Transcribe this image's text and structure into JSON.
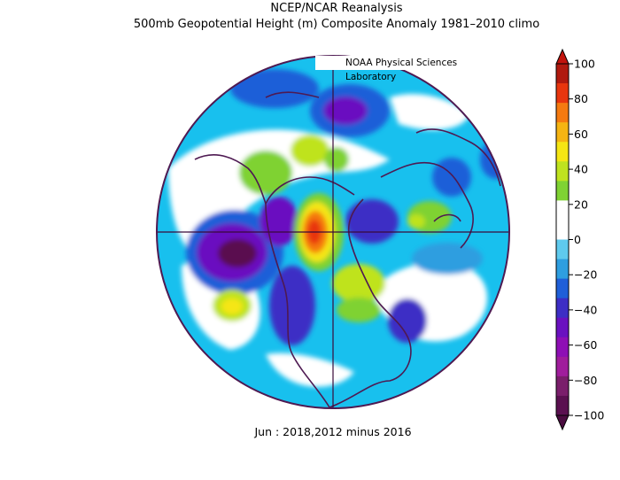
{
  "header": {
    "line1": "NCEP/NCAR Reanalysis",
    "line2": "500mb Geopotential Height (m) Composite Anomaly 1981–2010 climo"
  },
  "credit": "NOAA Physical Sciences Laboratory",
  "footer": "Jun : 2018,2012 minus 2016",
  "colorbar": {
    "ticks": [
      "100",
      "80",
      "60",
      "40",
      "20",
      "0",
      "−20",
      "−40",
      "−60",
      "−80",
      "−100"
    ],
    "colors": [
      "#b01a0f",
      "#e8360e",
      "#f57a10",
      "#f5b412",
      "#f5e614",
      "#bfe31f",
      "#7fd233",
      "#ffffff",
      "#ffffff",
      "#5fcaee",
      "#2e9ee0",
      "#1f5fd8",
      "#3d2ec5",
      "#6a11c0",
      "#8e0fb5",
      "#a01d9c",
      "#7a1e6b",
      "#5a1050"
    ],
    "top_arrow_color": "#c2140d",
    "bottom_arrow_color": "#4a0c40"
  },
  "map": {
    "projection": "polar stereographic, north pole",
    "background_color": "#18c0ee",
    "outline_color": "#4e1a52"
  }
}
